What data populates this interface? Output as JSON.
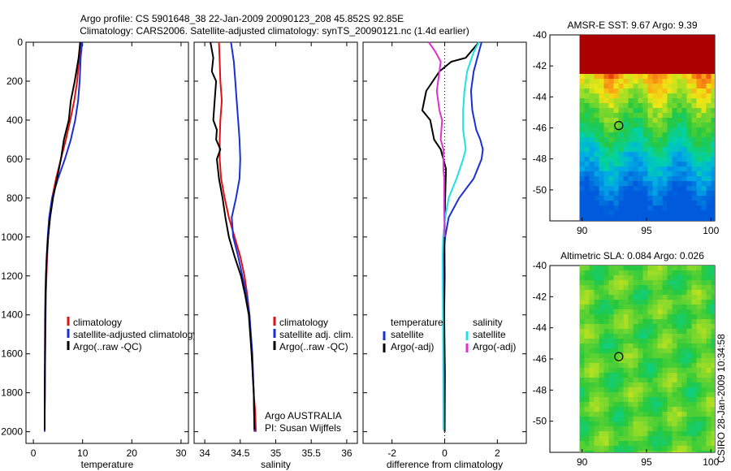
{
  "header": {
    "line1": "Argo profile: CS 5901648_38 22-Jan-2009 20090123_208 45.852S 92.85E",
    "line2": "Climatology: CARS2006. Satellite-adjusted climatology: synTS_20090121.nc (1.4d earlier)"
  },
  "colors": {
    "climatology": "#e01010",
    "satellite": "#1a2fd6",
    "argo": "#000000",
    "salinity_sat": "#20e0e8",
    "salinity_argo": "#e030d0"
  },
  "chart_data": [
    {
      "type": "line",
      "panel": "temperature",
      "xlabel": "temperature",
      "ylabel": "",
      "xlim": [
        -1.5,
        31.5
      ],
      "ylim": [
        2060,
        0
      ],
      "xticks": [
        0,
        10,
        20,
        30
      ],
      "yticks": [
        0,
        200,
        400,
        600,
        800,
        1000,
        1200,
        1400,
        1600,
        1800,
        2000
      ],
      "legend": [
        "climatology",
        "satellite-adjusted climatology",
        "Argo(..raw -QC)"
      ],
      "series": [
        {
          "name": "climatology",
          "x": [
            9.6,
            9.3,
            8.9,
            8.3,
            7.5,
            6.6,
            5.6,
            4.6,
            3.8,
            3.3,
            3.0,
            2.8,
            2.65,
            2.55,
            2.5,
            2.45,
            2.4,
            2.35,
            2.3,
            2.3
          ],
          "y": [
            0,
            80,
            200,
            300,
            400,
            500,
            600,
            700,
            800,
            900,
            1000,
            1100,
            1200,
            1300,
            1400,
            1500,
            1600,
            1800,
            1900,
            1990
          ]
        },
        {
          "name": "satellite-adjusted climatology",
          "x": [
            9.9,
            9.6,
            9.4,
            9.1,
            8.5,
            7.6,
            6.4,
            5.0,
            3.8,
            3.2,
            2.9,
            2.7,
            2.6,
            2.5,
            2.45,
            2.4,
            2.35,
            2.3,
            2.3
          ],
          "y": [
            0,
            80,
            200,
            300,
            400,
            500,
            600,
            700,
            800,
            900,
            1000,
            1100,
            1200,
            1300,
            1400,
            1600,
            1800,
            1900,
            2000
          ]
        },
        {
          "name": "Argo(..raw -QC)",
          "x": [
            9.5,
            9.2,
            8.4,
            7.6,
            7.2,
            6.2,
            5.6,
            4.8,
            4.0,
            3.4,
            3.0,
            2.7,
            2.55,
            2.45,
            2.4,
            2.35,
            2.3,
            2.3
          ],
          "y": [
            0,
            80,
            200,
            300,
            400,
            500,
            600,
            700,
            800,
            900,
            1000,
            1100,
            1200,
            1300,
            1400,
            1600,
            1800,
            1990
          ]
        }
      ]
    },
    {
      "type": "line",
      "panel": "salinity",
      "xlabel": "salinity",
      "ylabel": "",
      "xlim": [
        33.85,
        36.15
      ],
      "ylim": [
        2060,
        0
      ],
      "xticks": [
        34,
        34.5,
        35,
        35.5,
        36
      ],
      "xticklabels": [
        "34",
        "34.5",
        "35",
        "35.5",
        "36"
      ],
      "legend": [
        "climatology",
        "satellite adj. clim.",
        "Argo(..raw -QC)"
      ],
      "annotations": [
        "Argo AUSTRALIA",
        "PI: Susan Wijffels"
      ],
      "series": [
        {
          "name": "climatology",
          "x": [
            34.2,
            34.21,
            34.22,
            34.24,
            34.22,
            34.21,
            34.21,
            34.23,
            34.28,
            34.34,
            34.42,
            34.5,
            34.56,
            34.6,
            34.63,
            34.66,
            34.69,
            34.71,
            34.72
          ],
          "y": [
            0,
            100,
            200,
            300,
            400,
            500,
            600,
            700,
            800,
            900,
            1000,
            1100,
            1200,
            1300,
            1400,
            1600,
            1800,
            1900,
            2000
          ]
        },
        {
          "name": "satellite adj. clim.",
          "x": [
            34.37,
            34.41,
            34.43,
            34.45,
            34.47,
            34.49,
            34.5,
            34.49,
            34.44,
            34.38,
            34.4,
            34.47,
            34.53,
            34.59,
            34.63,
            34.67,
            34.69,
            34.7
          ],
          "y": [
            0,
            100,
            200,
            300,
            400,
            500,
            600,
            700,
            800,
            900,
            1000,
            1100,
            1200,
            1300,
            1400,
            1600,
            1800,
            2000
          ]
        },
        {
          "name": "Argo(..raw -QC)",
          "x": [
            34.08,
            34.12,
            34.1,
            34.16,
            34.14,
            34.12,
            34.17,
            34.16,
            34.22,
            34.17,
            34.2,
            34.25,
            34.29,
            34.34,
            34.42,
            34.51,
            34.57,
            34.62,
            34.66,
            34.69,
            34.7
          ],
          "y": [
            0,
            80,
            150,
            200,
            300,
            400,
            450,
            500,
            550,
            600,
            700,
            800,
            900,
            1000,
            1100,
            1200,
            1300,
            1400,
            1600,
            1800,
            1990
          ]
        }
      ]
    },
    {
      "type": "line",
      "panel": "difference",
      "xlabel": "difference from climatology",
      "ylabel": "",
      "xlim": [
        -3.1,
        3.1
      ],
      "ylim": [
        2060,
        0
      ],
      "xticks": [
        -2,
        0,
        2
      ],
      "legend_temperature": {
        "heading": "temperature",
        "items": [
          "satellite",
          "Argo(-adj)"
        ]
      },
      "legend_salinity": {
        "heading": "salinity",
        "items": [
          "satellite",
          "Argo(-adj)"
        ]
      },
      "series": [
        {
          "name": "temperature satellite",
          "x": [
            1.4,
            1.3,
            1.1,
            1.0,
            1.05,
            1.2,
            1.35,
            1.45,
            1.4,
            1.1,
            0.55,
            0.15,
            0.02,
            -0.05,
            -0.04,
            -0.02,
            -0.01,
            0.0
          ],
          "y": [
            0,
            50,
            150,
            250,
            350,
            450,
            500,
            550,
            600,
            700,
            800,
            900,
            1000,
            1100,
            1300,
            1500,
            1700,
            2000
          ]
        },
        {
          "name": "temperature Argo(-adj)",
          "x": [
            1.3,
            0.8,
            0.25,
            -0.2,
            -0.7,
            -0.85,
            -0.55,
            -0.4,
            -0.15,
            0.05,
            0.02,
            -0.01,
            0.0,
            -0.02,
            0.01,
            0.0
          ],
          "y": [
            0,
            80,
            100,
            150,
            250,
            350,
            400,
            500,
            550,
            650,
            800,
            1000,
            1200,
            1400,
            1700,
            2000
          ]
        },
        {
          "name": "salinity satellite",
          "x": [
            1.3,
            1.1,
            0.85,
            0.75,
            0.7,
            0.7,
            0.75,
            0.8,
            0.7,
            0.45,
            0.15,
            0.02,
            -0.06,
            -0.08,
            -0.07,
            -0.06,
            -0.05
          ],
          "y": [
            0,
            50,
            150,
            250,
            350,
            450,
            500,
            550,
            600,
            700,
            800,
            900,
            1000,
            1100,
            1300,
            1600,
            1990
          ]
        },
        {
          "name": "salinity Argo(-adj)",
          "x": [
            -0.6,
            -0.35,
            -0.15,
            -0.3,
            -0.2,
            -0.1,
            -0.15,
            -0.05,
            -0.05,
            -0.02,
            -0.02,
            0.0
          ],
          "y": [
            0,
            50,
            100,
            250,
            350,
            400,
            500,
            550,
            650,
            700,
            850,
            1000
          ]
        }
      ]
    },
    {
      "type": "heatmap",
      "panel": "AMSR-E SST",
      "title": "AMSR-E SST: 9.67  Argo: 9.39",
      "xlim": [
        87.5,
        100.3
      ],
      "ylim": [
        -52,
        -40
      ],
      "xticks": [
        90,
        95,
        100
      ],
      "yticks": [
        -40,
        -42,
        -44,
        -46,
        -48,
        -50
      ],
      "marker": {
        "lon": 92.85,
        "lat": -45.85
      }
    },
    {
      "type": "heatmap",
      "panel": "Altimetric SLA",
      "title": "Altimetric SLA: 0.084  Argo: 0.026",
      "xlim": [
        87.5,
        100.3
      ],
      "ylim": [
        -52,
        -40
      ],
      "xticks": [
        90,
        95,
        100
      ],
      "yticks": [
        -40,
        -42,
        -44,
        -46,
        -48,
        -50
      ],
      "marker": {
        "lon": 92.85,
        "lat": -45.85
      }
    }
  ],
  "footer": {
    "stamp": "CSIRO 28-Jan-2009 10:34:58"
  }
}
